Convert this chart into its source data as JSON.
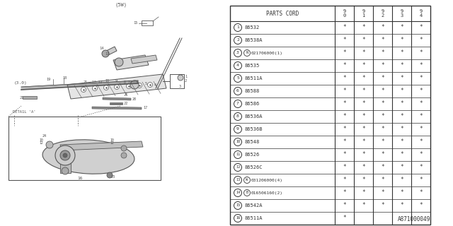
{
  "background_color": "#ffffff",
  "line_color": "#555555",
  "text_color": "#333333",
  "table": {
    "rows": [
      {
        "num": "1",
        "part": "86532",
        "special": "",
        "cols": [
          "*",
          "*",
          "*",
          "*",
          "*"
        ]
      },
      {
        "num": "2",
        "part": "86538A",
        "special": "",
        "cols": [
          "*",
          "*",
          "*",
          "*",
          "*"
        ]
      },
      {
        "num": "3",
        "part": "021706000(1)",
        "special": "N",
        "cols": [
          "*",
          "*",
          "*",
          "*",
          "*"
        ]
      },
      {
        "num": "4",
        "part": "86535",
        "special": "",
        "cols": [
          "*",
          "*",
          "*",
          "*",
          "*"
        ]
      },
      {
        "num": "5",
        "part": "86511A",
        "special": "",
        "cols": [
          "*",
          "*",
          "*",
          "*",
          "*"
        ]
      },
      {
        "num": "6",
        "part": "86588",
        "special": "",
        "cols": [
          "*",
          "*",
          "*",
          "*",
          "*"
        ]
      },
      {
        "num": "7",
        "part": "86586",
        "special": "",
        "cols": [
          "*",
          "*",
          "*",
          "*",
          "*"
        ]
      },
      {
        "num": "8",
        "part": "86536A",
        "special": "",
        "cols": [
          "*",
          "*",
          "*",
          "*",
          "*"
        ]
      },
      {
        "num": "9",
        "part": "86536B",
        "special": "",
        "cols": [
          "*",
          "*",
          "*",
          "*",
          "*"
        ]
      },
      {
        "num": "10",
        "part": "86548",
        "special": "",
        "cols": [
          "*",
          "*",
          "*",
          "*",
          "*"
        ]
      },
      {
        "num": "11",
        "part": "86526",
        "special": "",
        "cols": [
          "*",
          "*",
          "*",
          "*",
          "*"
        ]
      },
      {
        "num": "12",
        "part": "86526C",
        "special": "",
        "cols": [
          "*",
          "*",
          "*",
          "*",
          "*"
        ]
      },
      {
        "num": "13",
        "part": "031206000(4)",
        "special": "W",
        "cols": [
          "*",
          "*",
          "*",
          "*",
          "*"
        ]
      },
      {
        "num": "14",
        "part": "016506160(2)",
        "special": "B",
        "cols": [
          "*",
          "*",
          "*",
          "*",
          "*"
        ]
      },
      {
        "num": "15",
        "part": "86542A",
        "special": "",
        "cols": [
          "*",
          "*",
          "*",
          "*",
          "*"
        ]
      },
      {
        "num": "16",
        "part": "86511A",
        "special": "",
        "cols": [
          "*",
          "",
          "",
          "",
          ""
        ]
      }
    ],
    "year_cols": [
      "9\n0",
      "9\n1",
      "9\n2",
      "9\n3",
      "9\n4"
    ]
  },
  "ref": "A871000049"
}
